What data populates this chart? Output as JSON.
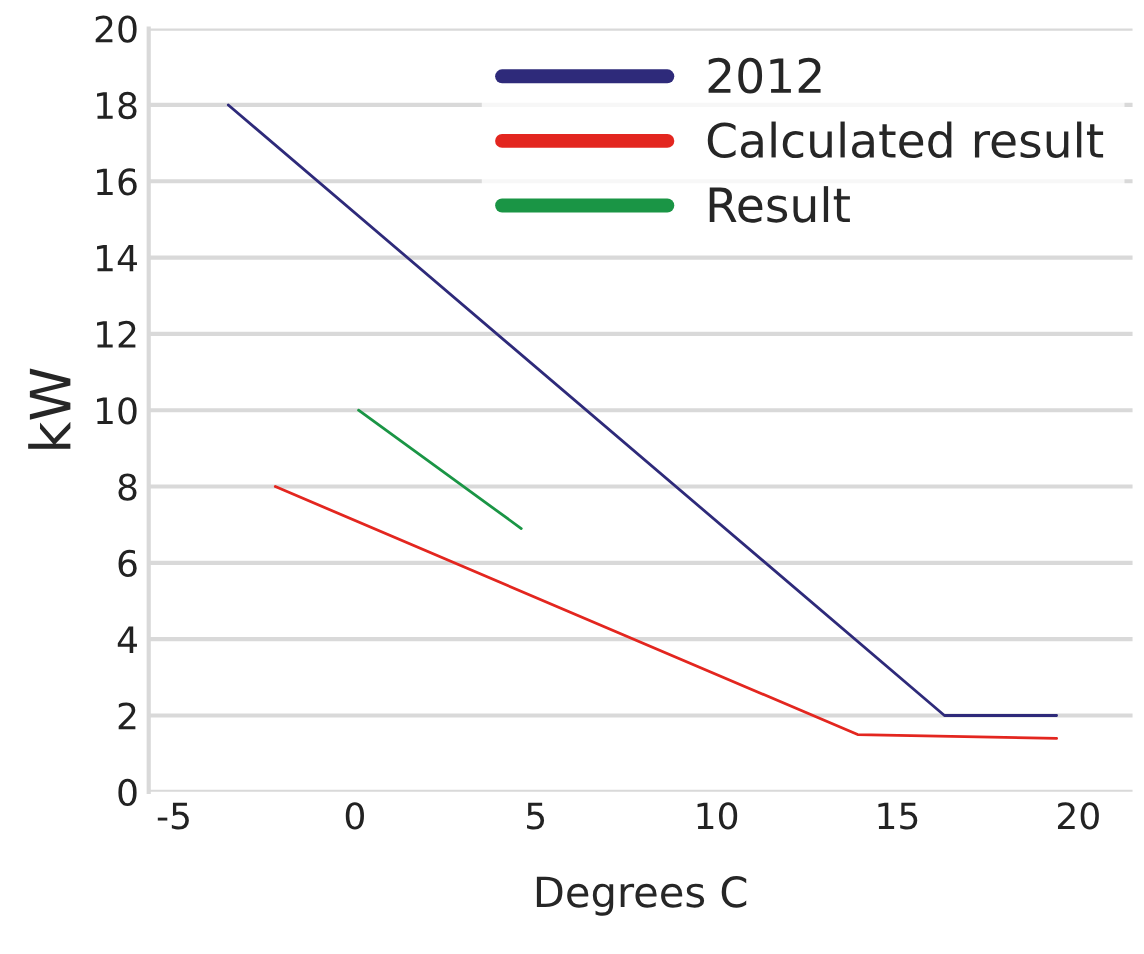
{
  "chart_data": {
    "type": "line",
    "xlabel": "Degrees C",
    "ylabel": "kW",
    "xlim": [
      -5.7,
      21.5
    ],
    "xticks": [
      -5,
      0,
      5,
      10,
      15,
      20
    ],
    "ylim": [
      0,
      20
    ],
    "yticks": [
      0,
      2,
      4,
      6,
      8,
      10,
      12,
      14,
      16,
      18,
      20
    ],
    "grid": "y",
    "legend": "top right",
    "line_style": "solid",
    "marker": "none",
    "series": [
      {
        "name": "2012",
        "color": "#2e2a7a",
        "x": [
          -3.5,
          16.3,
          19.4
        ],
        "values": [
          18,
          2,
          2
        ]
      },
      {
        "name": "Calculated result",
        "color": "#e3261f",
        "x": [
          -2.2,
          13.9,
          19.4
        ],
        "values": [
          8,
          1.5,
          1.4
        ]
      },
      {
        "name": "Result",
        "color": "#1a9545",
        "x": [
          0.1,
          4.6
        ],
        "values": [
          10,
          6.9
        ]
      }
    ]
  }
}
